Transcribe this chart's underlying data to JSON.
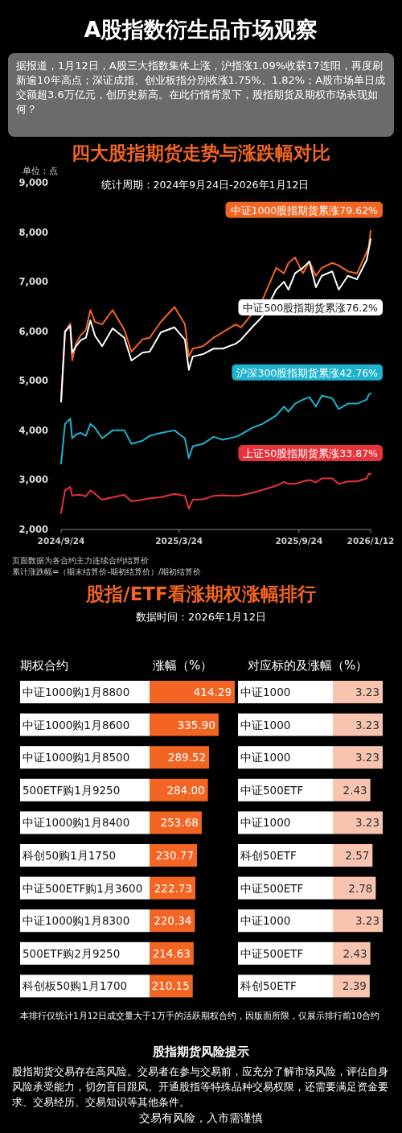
{
  "chart_data": [
    {
      "type": "other",
      "title": "A股指数衍生品市场观察",
      "annotations": [
        "据报道，1月12日，A股三大指数集体上涨，沪指涨1.09%收获17连阳，再度刷新逾10年高点；深证成指、创业板指分别收涨1.75%、1.82%；A股市场单日成交额超3.6万亿元，创历史新高。在此行情背景下，股指期货及期权市场表现如何？"
      ]
    },
    {
      "type": "line",
      "title": "四大股指期货走势与涨跌幅对比",
      "subtitle": "统计周期：2024年9月24日-2026年1月12日",
      "ylabel": "单位：点",
      "x": [
        "2024-09-24",
        "2024-09-30",
        "2024-10-08",
        "2024-10-11",
        "2024-10-17",
        "2024-10-24",
        "2024-11-01",
        "2024-11-08",
        "2024-11-15",
        "2024-11-26",
        "2024-12-12",
        "2024-12-30",
        "2025-01-10",
        "2025-01-27",
        "2025-02-07",
        "2025-02-24",
        "2025-03-17",
        "2025-04-02",
        "2025-04-08",
        "2025-04-14",
        "2025-04-30",
        "2025-05-16",
        "2025-05-30",
        "2025-06-19",
        "2025-06-27",
        "2025-07-14",
        "2025-07-30",
        "2025-08-20",
        "2025-09-01",
        "2025-09-08",
        "2025-09-18",
        "2025-09-30",
        "2025-10-10",
        "2025-10-20",
        "2025-10-29",
        "2025-11-14",
        "2025-11-24",
        "2025-12-08",
        "2025-12-22",
        "2026-01-06",
        "2026-01-09",
        "2026-01-12"
      ],
      "series": [
        {
          "name": "中证1000股指期货累涨79.62%",
          "color": "#f26522",
          "values": [
            4600,
            5980,
            6160,
            5410,
            5760,
            5920,
            6030,
            6430,
            6190,
            6140,
            6430,
            6030,
            5590,
            5840,
            5870,
            6190,
            6490,
            6140,
            5490,
            5650,
            5700,
            5870,
            5980,
            6140,
            6080,
            6350,
            6630,
            7280,
            7170,
            7380,
            7490,
            7170,
            7410,
            7120,
            7280,
            7380,
            7330,
            7210,
            7170,
            7600,
            7700,
            8030
          ]
        },
        {
          "name": "中证500股指期货累涨76.2%",
          "color": "#ffffff",
          "values": [
            4580,
            6000,
            6110,
            5570,
            5700,
            5820,
            5870,
            6220,
            5910,
            5700,
            6060,
            5870,
            5410,
            5570,
            5590,
            5980,
            6080,
            5830,
            5220,
            5490,
            5540,
            5650,
            5650,
            5750,
            5830,
            6080,
            6300,
            6840,
            7000,
            6840,
            7170,
            7280,
            7410,
            6890,
            7120,
            7210,
            6840,
            7120,
            7050,
            7440,
            7650,
            7860
          ]
        },
        {
          "name": "沪深300股指期货累涨42.76%",
          "color": "#1fb3cf",
          "values": [
            3330,
            4130,
            4240,
            3840,
            3920,
            3950,
            3890,
            4130,
            4050,
            3840,
            4000,
            4000,
            3730,
            3790,
            3890,
            3950,
            4000,
            3840,
            3440,
            3680,
            3730,
            3870,
            3810,
            3870,
            3920,
            4050,
            4130,
            4300,
            4480,
            4380,
            4540,
            4620,
            4670,
            4480,
            4700,
            4650,
            4430,
            4540,
            4540,
            4620,
            4720,
            4750
          ]
        },
        {
          "name": "上证50股指期货累涨33.87%",
          "color": "#e8323c",
          "values": [
            2330,
            2790,
            2860,
            2680,
            2700,
            2700,
            2670,
            2790,
            2720,
            2600,
            2650,
            2700,
            2570,
            2600,
            2630,
            2650,
            2720,
            2680,
            2420,
            2600,
            2610,
            2680,
            2690,
            2680,
            2690,
            2740,
            2800,
            2880,
            2960,
            2920,
            2920,
            2970,
            3000,
            2950,
            3030,
            3030,
            2920,
            2970,
            2970,
            3030,
            3130,
            3120
          ]
        }
      ],
      "xlim": [
        "2024-09-24",
        "2026-01-12"
      ],
      "xticks": [
        {
          "value": "2024-09-24",
          "label": "2024/9/24"
        },
        {
          "value": "2025-03-24",
          "label": "2025/3/24"
        },
        {
          "value": "2025-09-24",
          "label": "2025/9/24"
        },
        {
          "value": "2026-01-12",
          "label": "2026/1/12"
        }
      ],
      "ylim": [
        2000,
        9000
      ],
      "yticks": [
        {
          "value": 2000,
          "label": "2,000"
        },
        {
          "value": 3000,
          "label": "3,000"
        },
        {
          "value": 4000,
          "label": "4,000"
        },
        {
          "value": 5000,
          "label": "5,000"
        },
        {
          "value": 6000,
          "label": "6,000"
        },
        {
          "value": 7000,
          "label": "7,000"
        },
        {
          "value": 8000,
          "label": "8,000"
        },
        {
          "value": 9000,
          "label": "9,000"
        }
      ],
      "annotations": [
        "页面数据为各合约主力连续合约结算价",
        "累计涨跌幅=（期末结算价-期初结算价）/期初结算价"
      ]
    },
    {
      "type": "bar",
      "orientation": "horizontal",
      "title": "股指/ETF看涨期权涨幅排行",
      "subtitle": "数据时间：2026年1月12日",
      "ylabel": "期权合约",
      "xlabel": "涨幅（%）",
      "color": "#f26522",
      "categories": [
        "中证1000购1月8800",
        "中证1000购1月8600",
        "中证1000购1月8500",
        "500ETF购1月9250",
        "中证1000购1月8400",
        "科创50购1月1750",
        "中证500ETF购1月3600",
        "中证1000购1月8300",
        "500ETF购2月9250",
        "科创板50购1月1700"
      ],
      "values": [
        414.29,
        335.9,
        289.52,
        284.0,
        253.68,
        230.77,
        222.73,
        220.34,
        214.63,
        210.15
      ],
      "value_labels": [
        "414.29",
        "335.90",
        "289.52",
        "284.00",
        "253.68",
        "230.77",
        "222.73",
        "220.34",
        "214.63",
        "210.15"
      ],
      "annotations": [
        "本排行仅统计1月12日成交量大于1万手的活跃期权合约，因版面所限，仅展示排行前10合约"
      ]
    },
    {
      "type": "bar",
      "orientation": "horizontal",
      "xlabel": "对应标的及涨幅（%）",
      "color": "#f8c4b0",
      "categories": [
        "中证1000",
        "中证1000",
        "中证1000",
        "中证500ETF",
        "中证1000",
        "科创50ETF",
        "中证500ETF",
        "中证1000",
        "中证500ETF",
        "科创50ETF"
      ],
      "values": [
        3.23,
        3.23,
        3.23,
        2.43,
        3.23,
        2.57,
        2.78,
        3.23,
        2.43,
        2.39
      ],
      "value_labels": [
        "3.23",
        "3.23",
        "3.23",
        "2.43",
        "3.23",
        "2.57",
        "2.78",
        "3.23",
        "2.43",
        "2.39"
      ]
    },
    {
      "type": "other",
      "title": "股指期货风险提示",
      "annotations": [
        "股指期货交易存在高风险。交易者在参与交易前，应充分了解市场风险，评估自身风险承受能力，切勿盲目跟风。开通股指等特殊品种交易权限，还需要满足资金要求、交易经历、交易知识等其他条件。",
        "交易有风险，入市需谨慎"
      ]
    }
  ]
}
